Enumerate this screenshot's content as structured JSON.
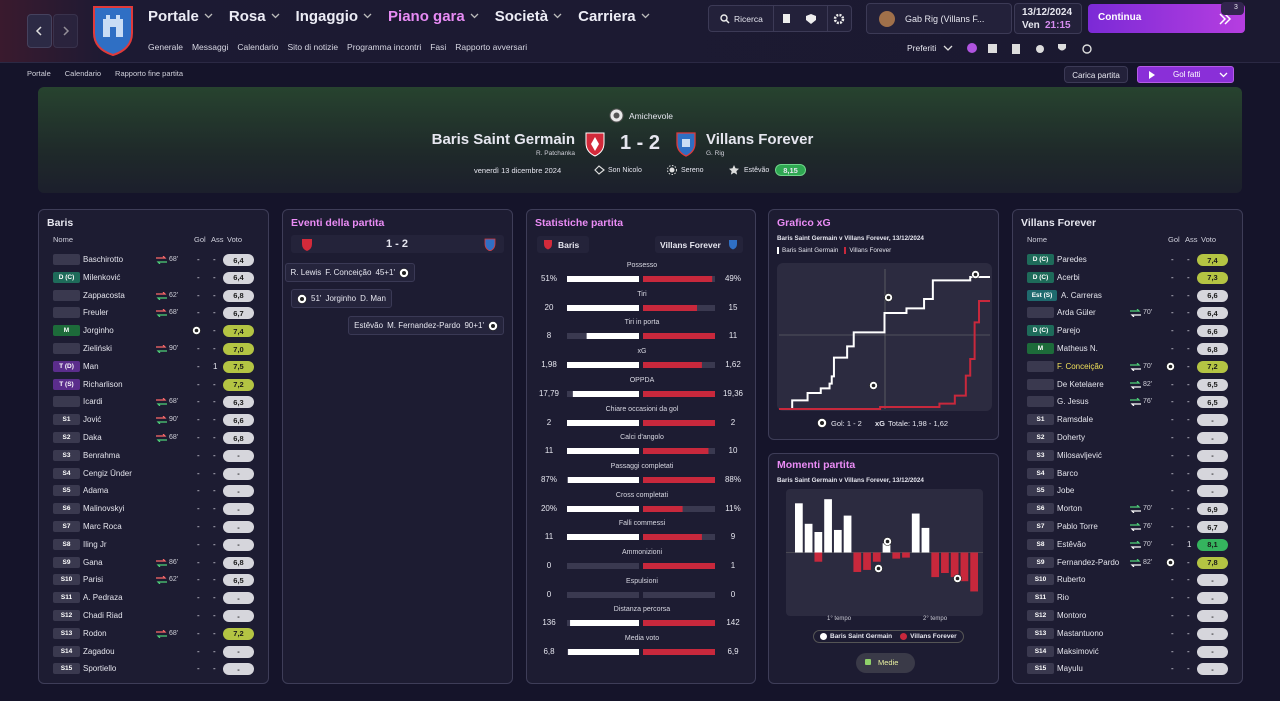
{
  "nav": {
    "menu": [
      "Portale",
      "Rosa",
      "Ingaggio",
      "Piano gara",
      "Società",
      "Carriera"
    ],
    "active": 3,
    "submenu": [
      "Generale",
      "Messaggi",
      "Calendario",
      "Sito di notizie",
      "Programma incontri",
      "Fasi",
      "Rapporto avversari"
    ],
    "search": "Ricerca",
    "profile": "Gab Rig (Villans F...",
    "date": "13/12/2024",
    "day": "Ven",
    "time": "21:15",
    "continue": "Continua",
    "badge": 3,
    "favorites": "Preferiti"
  },
  "breadcrumb": [
    "Portale",
    "Calendario",
    "Rapporto fine partita"
  ],
  "actions": {
    "load": "Carica partita",
    "goals": "Gol fatti"
  },
  "match": {
    "competition": "Amichevole",
    "home": "Baris Saint Germain",
    "home_manager": "R. Patchanka",
    "score": "1 - 2",
    "away": "Villans Forever",
    "away_manager": "G. Rig",
    "date": "venerdì 13 dicembre 2024",
    "referee": "Son Nicolo",
    "weather": "Sereno",
    "motm": "Estêvão",
    "motm_rating": "8,15"
  },
  "home_lineup": {
    "title": "Baris",
    "columns": [
      "Nome",
      "Gol",
      "Ass",
      "Voto"
    ],
    "players": [
      {
        "name": "Baschirotto",
        "sub": "68'",
        "gol": "-",
        "ass": "-",
        "voto": "6,4"
      },
      {
        "pos": "D (C)",
        "name": "Milenković",
        "gol": "-",
        "ass": "-",
        "voto": "6,4"
      },
      {
        "name": "Zappacosta",
        "sub": "62'",
        "gol": "-",
        "ass": "-",
        "voto": "6,8"
      },
      {
        "name": "Freuler",
        "sub": "68'",
        "gol": "-",
        "ass": "-",
        "voto": "6,7"
      },
      {
        "pos": "M",
        "name": "Jorginho",
        "goal": true,
        "ass": "-",
        "voto": "7,4"
      },
      {
        "name": "Zieliński",
        "sub": "90'",
        "gol": "-",
        "ass": "-",
        "voto": "7,0"
      },
      {
        "pos": "T (D)",
        "name": "Man",
        "gol": "-",
        "ass": "1",
        "voto": "7,5"
      },
      {
        "pos": "T (S)",
        "name": "Richarlison",
        "gol": "-",
        "ass": "-",
        "voto": "7,2"
      },
      {
        "name": "Icardi",
        "sub": "68'",
        "gol": "-",
        "ass": "-",
        "voto": "6,3"
      },
      {
        "pos": "S1",
        "name": "Jović",
        "sub": "90'",
        "gol": "-",
        "ass": "-",
        "voto": "6,6"
      },
      {
        "pos": "S2",
        "name": "Daka",
        "sub": "68'",
        "gol": "-",
        "ass": "-",
        "voto": "6,8"
      },
      {
        "pos": "S3",
        "name": "Benrahma",
        "gol": "-",
        "ass": "-",
        "voto": "-"
      },
      {
        "pos": "S4",
        "name": "Cengiz Ünder",
        "gol": "-",
        "ass": "-",
        "voto": "-"
      },
      {
        "pos": "S5",
        "name": "Adama",
        "gol": "-",
        "ass": "-",
        "voto": "-"
      },
      {
        "pos": "S6",
        "name": "Malinovskyi",
        "gol": "-",
        "ass": "-",
        "voto": "-"
      },
      {
        "pos": "S7",
        "name": "Marc Roca",
        "gol": "-",
        "ass": "-",
        "voto": "-"
      },
      {
        "pos": "S8",
        "name": "Iling Jr",
        "gol": "-",
        "ass": "-",
        "voto": "-"
      },
      {
        "pos": "S9",
        "name": "Gana",
        "sub": "86'",
        "gol": "-",
        "ass": "-",
        "voto": "6,8"
      },
      {
        "pos": "S10",
        "name": "Parisi",
        "sub": "62'",
        "gol": "-",
        "ass": "-",
        "voto": "6,5"
      },
      {
        "pos": "S11",
        "name": "A. Pedraza",
        "gol": "-",
        "ass": "-",
        "voto": "-"
      },
      {
        "pos": "S12",
        "name": "Chadi Riad",
        "gol": "-",
        "ass": "-",
        "voto": "-"
      },
      {
        "pos": "S13",
        "name": "Rodon",
        "sub": "68'",
        "gol": "-",
        "ass": "-",
        "voto": "7,2"
      },
      {
        "pos": "S14",
        "name": "Zagadou",
        "gol": "-",
        "ass": "-",
        "voto": "-"
      },
      {
        "pos": "S15",
        "name": "Sportiello",
        "gol": "-",
        "ass": "-",
        "voto": "-"
      }
    ]
  },
  "away_lineup": {
    "title": "Villans Forever",
    "columns": [
      "Nome",
      "Gol",
      "Ass",
      "Voto"
    ],
    "players": [
      {
        "pos": "D (C)",
        "name": "Paredes",
        "gol": "-",
        "ass": "-",
        "voto": "7,4"
      },
      {
        "pos": "D (C)",
        "name": "Acerbi",
        "gol": "-",
        "ass": "-",
        "voto": "7,3"
      },
      {
        "pos": "Est (S)",
        "name": "A. Carreras",
        "gol": "-",
        "ass": "-",
        "voto": "6,6"
      },
      {
        "name": "Arda Güler",
        "sub": "70'",
        "gol": "-",
        "ass": "-",
        "voto": "6,4"
      },
      {
        "pos": "D (C)",
        "name": "Parejo",
        "gol": "-",
        "ass": "-",
        "voto": "6,6"
      },
      {
        "pos": "M",
        "name": "Matheus N.",
        "gol": "-",
        "ass": "-",
        "voto": "6,8"
      },
      {
        "name": "F. Conceição",
        "highlight": true,
        "sub": "70'",
        "goal": true,
        "ass": "-",
        "voto": "7,2"
      },
      {
        "name": "De Ketelaere",
        "sub": "82'",
        "gol": "-",
        "ass": "-",
        "voto": "6,5"
      },
      {
        "name": "G. Jesus",
        "sub": "76'",
        "gol": "-",
        "ass": "-",
        "voto": "6,5"
      },
      {
        "pos": "S1",
        "name": "Ramsdale",
        "gol": "-",
        "ass": "-",
        "voto": "-"
      },
      {
        "pos": "S2",
        "name": "Doherty",
        "gol": "-",
        "ass": "-",
        "voto": "-"
      },
      {
        "pos": "S3",
        "name": "Milosavljević",
        "gol": "-",
        "ass": "-",
        "voto": "-"
      },
      {
        "pos": "S4",
        "name": "Barco",
        "gol": "-",
        "ass": "-",
        "voto": "-"
      },
      {
        "pos": "S5",
        "name": "Jobe",
        "gol": "-",
        "ass": "-",
        "voto": "-"
      },
      {
        "pos": "S6",
        "name": "Morton",
        "sub": "70'",
        "gol": "-",
        "ass": "-",
        "voto": "6,9"
      },
      {
        "pos": "S7",
        "name": "Pablo Torre",
        "sub": "76'",
        "gol": "-",
        "ass": "-",
        "voto": "6,7"
      },
      {
        "pos": "S8",
        "name": "Estêvão",
        "sub": "70'",
        "gol": "-",
        "ass": "1",
        "voto": "8,1"
      },
      {
        "pos": "S9",
        "name": "Fernandez-Pardo",
        "sub": "82'",
        "goal": true,
        "ass": "-",
        "voto": "7,8"
      },
      {
        "pos": "S10",
        "name": "Ruberto",
        "gol": "-",
        "ass": "-",
        "voto": "-"
      },
      {
        "pos": "S11",
        "name": "Rio",
        "gol": "-",
        "ass": "-",
        "voto": "-"
      },
      {
        "pos": "S12",
        "name": "Montoro",
        "gol": "-",
        "ass": "-",
        "voto": "-"
      },
      {
        "pos": "S13",
        "name": "Mastantuono",
        "gol": "-",
        "ass": "-",
        "voto": "-"
      },
      {
        "pos": "S14",
        "name": "Maksimović",
        "gol": "-",
        "ass": "-",
        "voto": "-"
      },
      {
        "pos": "S15",
        "name": "Mayulu",
        "gol": "-",
        "ass": "-",
        "voto": "-"
      }
    ]
  },
  "events": {
    "title": "Eventi della partita",
    "score": "1 - 2",
    "items": [
      {
        "side": "away",
        "assist": "R. Lewis",
        "scorer": "F. Conceição",
        "minute": "45+1'"
      },
      {
        "side": "home",
        "minute": "51'",
        "scorer": "Jorginho",
        "assist": "D. Man"
      },
      {
        "side": "away",
        "assist": "Estêvão",
        "scorer": "M. Fernandez-Pardo",
        "minute": "90+1'"
      }
    ]
  },
  "stats": {
    "title": "Statistiche partita",
    "home": "Baris",
    "away": "Villans Forever",
    "rows": [
      {
        "label": "Possesso",
        "home": 51,
        "away": 49,
        "home_label": "51%",
        "away_label": "49%"
      },
      {
        "label": "Tiri",
        "home": 20,
        "away": 15
      },
      {
        "label": "Tiri in porta",
        "home": 8,
        "away": 11
      },
      {
        "label": "xG",
        "home": 1.98,
        "away": 1.62,
        "home_label": "1,98",
        "away_label": "1,62"
      },
      {
        "label": "OPPDA",
        "home": 17.79,
        "away": 19.36,
        "home_label": "17,79",
        "away_label": "19,36"
      },
      {
        "label": "Chiare occasioni da gol",
        "home": 2,
        "away": 2
      },
      {
        "label": "Calci d'angolo",
        "home": 11,
        "away": 10
      },
      {
        "label": "Passaggi completati",
        "home": 87,
        "away": 88,
        "home_label": "87%",
        "away_label": "88%"
      },
      {
        "label": "Cross completati",
        "home": 20,
        "away": 11,
        "home_label": "20%",
        "away_label": "11%"
      },
      {
        "label": "Falli commessi",
        "home": 11,
        "away": 9
      },
      {
        "label": "Ammonizioni",
        "home": 0,
        "away": 1
      },
      {
        "label": "Espulsioni",
        "home": 0,
        "away": 0
      },
      {
        "label": "Distanza percorsa",
        "home": 136,
        "away": 142
      },
      {
        "label": "Media voto",
        "home": 6.8,
        "away": 6.9,
        "home_label": "6,8",
        "away_label": "6,9"
      }
    ]
  },
  "xg_chart": {
    "type": "step",
    "title": "Grafico xG",
    "subtitle": "Baris Saint Germain v Villans Forever, 13/12/2024",
    "xlim": [
      0,
      96
    ],
    "ylim": [
      0,
      2.1
    ],
    "series": [
      {
        "name": "Baris Saint Germain",
        "color": "#ffffff",
        "minutes": [
          6,
          13,
          19,
          23,
          24,
          25,
          31,
          34,
          48,
          58,
          66,
          70,
          87
        ],
        "xg": [
          0.13,
          0.11,
          0.07,
          0.07,
          0.11,
          0.28,
          0.17,
          0.21,
          0.29,
          0.07,
          0.14,
          0.28,
          0.05
        ]
      },
      {
        "name": "Villans Forever",
        "color": "#c8283c",
        "minutes": [
          46,
          73,
          80,
          85,
          87,
          89,
          91
        ],
        "xg": [
          0.03,
          0.05,
          0.12,
          0.3,
          0.25,
          0.55,
          0.32
        ]
      }
    ],
    "goals_label": "Gol: 1 - 2",
    "xg_prefix": "xG",
    "xg_total_label": "Totale: 1,98 - 1,62"
  },
  "moments": {
    "type": "bar",
    "title": "Momenti partita",
    "subtitle": "Baris Saint Germain v Villans Forever, 13/12/2024",
    "ylim": [
      -60,
      60
    ],
    "series": [
      {
        "name": "Baris Saint Germain",
        "color": "#ffffff",
        "values": [
          48,
          28,
          20,
          52,
          22,
          36,
          0,
          0,
          0,
          9,
          0,
          0,
          38,
          24,
          0,
          0,
          0,
          0,
          0
        ]
      },
      {
        "name": "Villans Forever",
        "color": "#c8283c",
        "values": [
          0,
          0,
          9,
          0,
          0,
          0,
          19,
          17,
          9,
          0,
          6,
          5,
          0,
          0,
          24,
          20,
          24,
          28,
          38
        ]
      }
    ],
    "halves": [
      "1° tempo",
      "2° tempo"
    ],
    "button": "Medie"
  }
}
